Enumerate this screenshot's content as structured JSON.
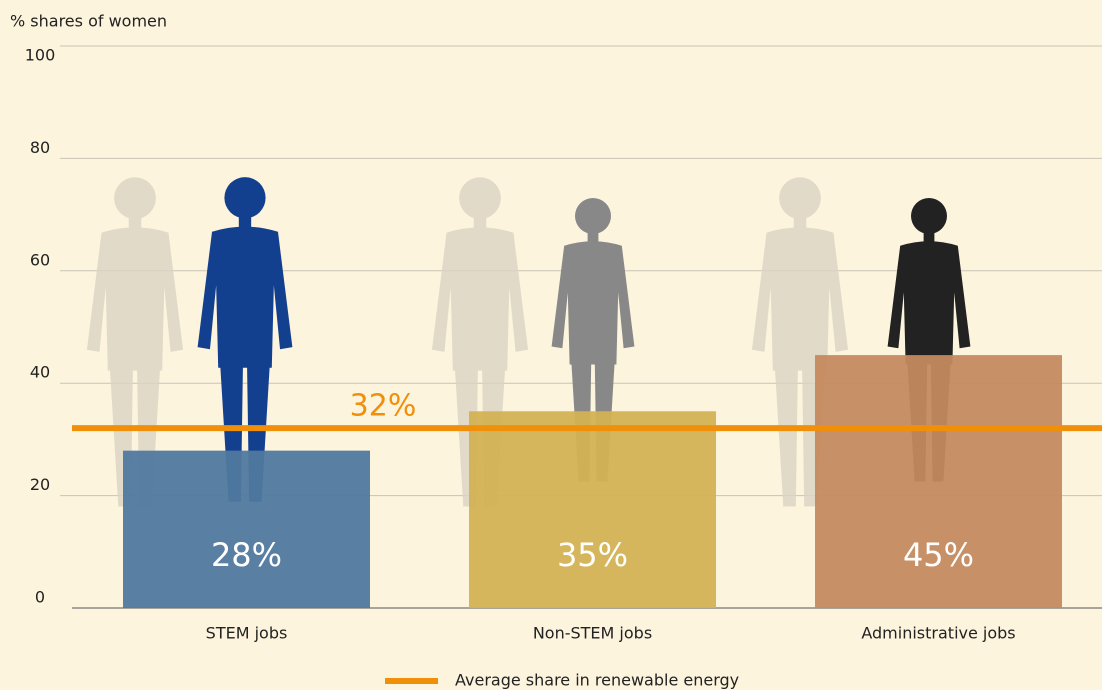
{
  "chart_data": {
    "type": "bar",
    "y_label": "% shares of women",
    "categories": [
      "STEM jobs",
      "Non-STEM jobs",
      "Administrative jobs"
    ],
    "values": [
      28,
      35,
      45
    ],
    "value_labels": [
      "28%",
      "35%",
      "45%"
    ],
    "colors": [
      "#50799f",
      "#d3b254",
      "#c58a5f"
    ],
    "average": {
      "name": "Average share in renewable energy",
      "value": 32,
      "label": "32%",
      "color": "#f0900a"
    },
    "ylim": [
      0,
      100
    ],
    "yticks": [
      0,
      20,
      40,
      60,
      80,
      100
    ],
    "grid": true
  }
}
